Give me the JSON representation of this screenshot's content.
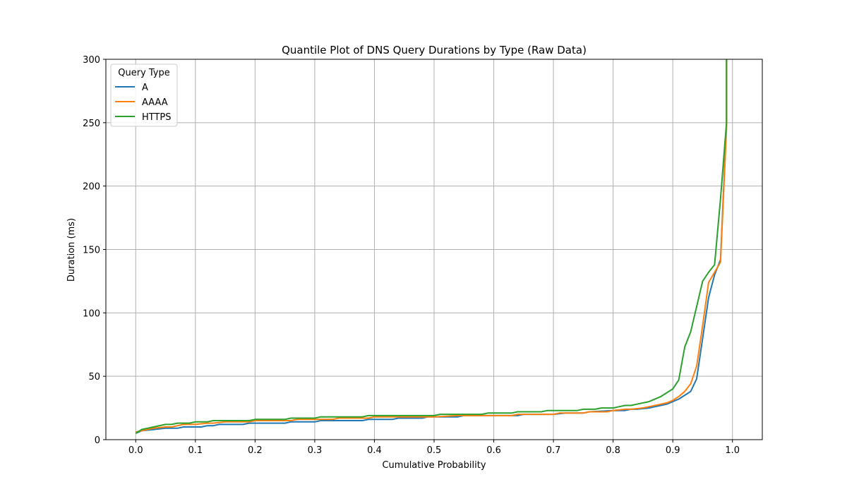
{
  "chart_data": {
    "type": "line",
    "title": "Quantile Plot of DNS Query Durations by Type (Raw Data)",
    "xlabel": "Cumulative Probability",
    "ylabel": "Duration (ms)",
    "xlim": [
      -0.05,
      1.05
    ],
    "ylim": [
      0,
      300
    ],
    "xticks": [
      "0.0",
      "0.1",
      "0.2",
      "0.3",
      "0.4",
      "0.5",
      "0.6",
      "0.7",
      "0.8",
      "0.9",
      "1.0"
    ],
    "yticks": [
      "0",
      "50",
      "100",
      "150",
      "200",
      "250",
      "300"
    ],
    "grid": true,
    "legend": {
      "title": "Query Type",
      "placement": "top-left"
    },
    "series": [
      {
        "name": "A",
        "color": "#1f77b4",
        "x": [
          0.0,
          0.01,
          0.03,
          0.05,
          0.07,
          0.08,
          0.1,
          0.11,
          0.12,
          0.13,
          0.14,
          0.15,
          0.18,
          0.19,
          0.2,
          0.25,
          0.26,
          0.3,
          0.31,
          0.35,
          0.38,
          0.39,
          0.43,
          0.44,
          0.47,
          0.48,
          0.49,
          0.5,
          0.54,
          0.55,
          0.59,
          0.6,
          0.64,
          0.65,
          0.7,
          0.72,
          0.75,
          0.76,
          0.8,
          0.82,
          0.83,
          0.84,
          0.86,
          0.87,
          0.88,
          0.89,
          0.9,
          0.91,
          0.92,
          0.93,
          0.94,
          0.95,
          0.96,
          0.97,
          0.98,
          0.99,
          0.99
        ],
        "y": [
          5,
          7,
          8,
          9,
          9,
          10,
          10,
          10,
          11,
          11,
          12,
          12,
          12,
          13,
          13,
          13,
          14,
          14,
          15,
          15,
          15,
          16,
          16,
          17,
          17,
          17,
          18,
          18,
          18,
          19,
          19,
          19,
          19,
          20,
          20,
          21,
          21,
          22,
          23,
          23,
          24,
          24,
          25,
          26,
          27,
          28,
          30,
          32,
          35,
          38,
          48,
          80,
          112,
          130,
          142,
          250,
          300
        ]
      },
      {
        "name": "AAAA",
        "color": "#ff7f0e",
        "x": [
          0.0,
          0.01,
          0.03,
          0.05,
          0.06,
          0.07,
          0.08,
          0.1,
          0.12,
          0.13,
          0.15,
          0.19,
          0.2,
          0.26,
          0.27,
          0.3,
          0.31,
          0.33,
          0.34,
          0.39,
          0.4,
          0.49,
          0.5,
          0.54,
          0.55,
          0.63,
          0.64,
          0.7,
          0.71,
          0.75,
          0.76,
          0.79,
          0.8,
          0.82,
          0.83,
          0.85,
          0.86,
          0.88,
          0.89,
          0.9,
          0.91,
          0.92,
          0.93,
          0.94,
          0.95,
          0.96,
          0.97,
          0.98,
          0.99,
          0.99
        ],
        "y": [
          6,
          7,
          9,
          10,
          10,
          11,
          12,
          12,
          13,
          13,
          14,
          14,
          15,
          15,
          16,
          16,
          16,
          16,
          17,
          17,
          18,
          18,
          18,
          19,
          19,
          19,
          20,
          20,
          21,
          21,
          22,
          22,
          23,
          24,
          24,
          25,
          26,
          28,
          29,
          31,
          34,
          38,
          44,
          58,
          90,
          124,
          132,
          140,
          245,
          300
        ]
      },
      {
        "name": "HTTPS",
        "color": "#2ca02c",
        "x": [
          0.0,
          0.01,
          0.03,
          0.05,
          0.06,
          0.07,
          0.09,
          0.1,
          0.12,
          0.13,
          0.19,
          0.2,
          0.25,
          0.26,
          0.3,
          0.31,
          0.38,
          0.39,
          0.5,
          0.51,
          0.58,
          0.59,
          0.63,
          0.64,
          0.68,
          0.69,
          0.74,
          0.75,
          0.77,
          0.78,
          0.8,
          0.81,
          0.82,
          0.83,
          0.84,
          0.86,
          0.88,
          0.9,
          0.91,
          0.92,
          0.93,
          0.94,
          0.95,
          0.96,
          0.97,
          0.98,
          0.99,
          0.99
        ],
        "y": [
          5,
          8,
          10,
          12,
          12,
          13,
          13,
          14,
          14,
          15,
          15,
          16,
          16,
          17,
          17,
          18,
          18,
          19,
          19,
          20,
          20,
          21,
          21,
          22,
          22,
          23,
          23,
          24,
          24,
          25,
          25,
          26,
          27,
          27,
          28,
          30,
          34,
          40,
          47,
          73,
          85,
          105,
          125,
          132,
          138,
          190,
          250,
          300
        ]
      }
    ]
  }
}
